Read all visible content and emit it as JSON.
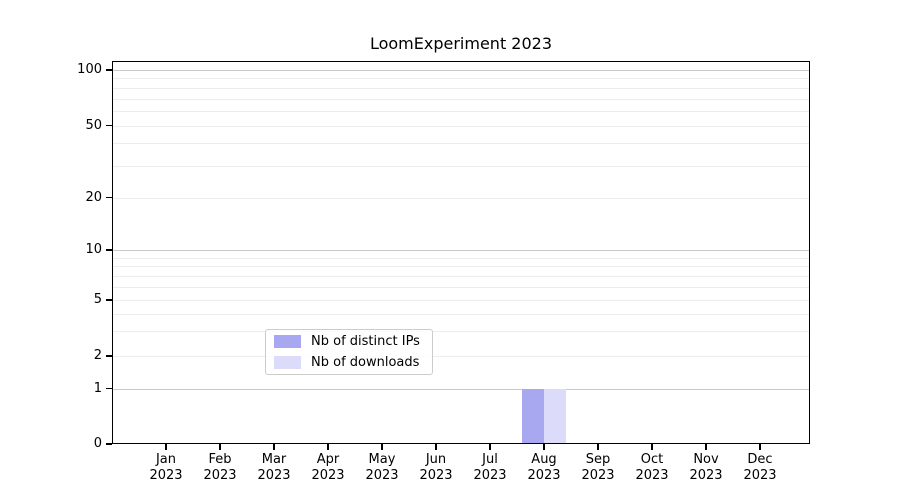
{
  "chart_data": {
    "type": "bar",
    "title": "LoomExperiment 2023",
    "xlabel": "",
    "ylabel": "",
    "categories": [
      "Jan",
      "Feb",
      "Mar",
      "Apr",
      "May",
      "Jun",
      "Jul",
      "Aug",
      "Sep",
      "Oct",
      "Nov",
      "Dec"
    ],
    "category_year": "2023",
    "series": [
      {
        "name": "Nb of distinct IPs",
        "color": "#a8a8f0",
        "values": [
          0,
          0,
          0,
          0,
          0,
          0,
          0,
          1,
          0,
          0,
          0,
          0
        ]
      },
      {
        "name": "Nb of downloads",
        "color": "#dcdcfa",
        "values": [
          0,
          0,
          0,
          0,
          0,
          0,
          0,
          1,
          0,
          0,
          0,
          0
        ]
      }
    ],
    "y_axis": {
      "scale": "log-like",
      "range": [
        0,
        100
      ],
      "tick_labels": [
        0,
        1,
        2,
        5,
        10,
        20,
        50,
        100
      ],
      "major_gridlines": [
        1,
        10,
        100
      ],
      "minor_gridlines": [
        2,
        3,
        4,
        5,
        6,
        7,
        8,
        9,
        20,
        30,
        40,
        50,
        60,
        70,
        80,
        90
      ]
    },
    "legend": {
      "position": "lower center",
      "entries": [
        "Nb of distinct IPs",
        "Nb of downloads"
      ]
    },
    "grid": true
  },
  "colors": {
    "background": "#ffffff",
    "axis": "#000000",
    "text": "#000000",
    "major_grid": "#c9c9c9",
    "minor_grid": "#ededed",
    "legend_border": "#cccccc",
    "bar_distinct_ips": "#a8a8f0",
    "bar_downloads": "#dcdcfa"
  }
}
